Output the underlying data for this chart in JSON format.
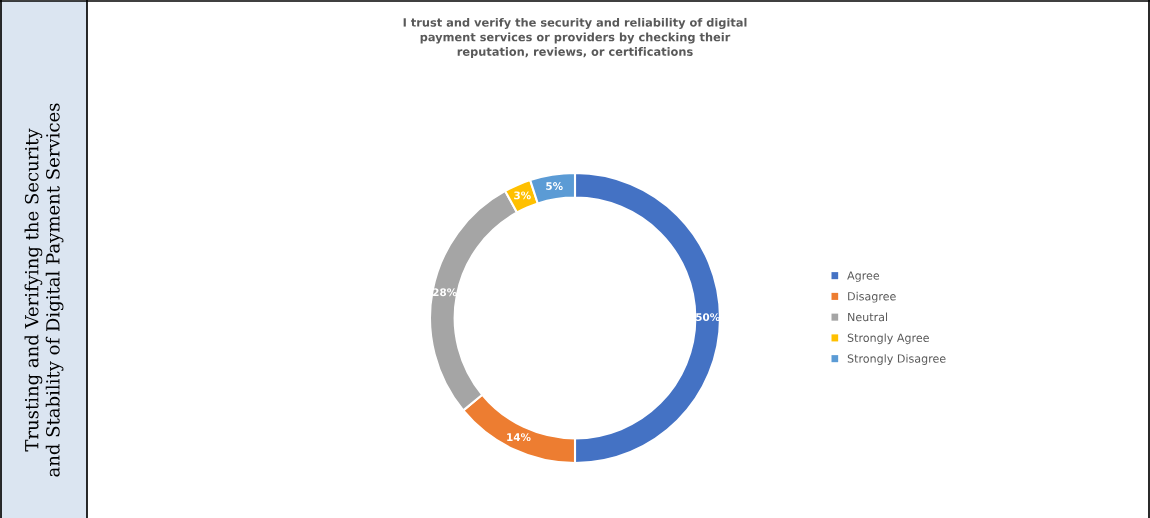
{
  "chart_data": {
    "type": "donut",
    "title": "I trust and verify the security and reliability of digital\npayment services or providers by checking their\nreputation, reviews, or certifications",
    "categories": [
      "Agree",
      "Disagree",
      "Neutral",
      "Strongly Agree",
      "Strongly Disagree"
    ],
    "values": [
      50,
      14,
      28,
      3,
      5
    ],
    "colors": [
      "#4472c4",
      "#ed7d31",
      "#a5a5a5",
      "#ffc000",
      "#5b9bd5"
    ],
    "value_labels": [
      "50%",
      "14%",
      "28%",
      "3%",
      "5%"
    ],
    "legend": "right",
    "annotations": [
      "Trusting and Verifying the Security\nand Stability of Digital Payment Services"
    ]
  }
}
